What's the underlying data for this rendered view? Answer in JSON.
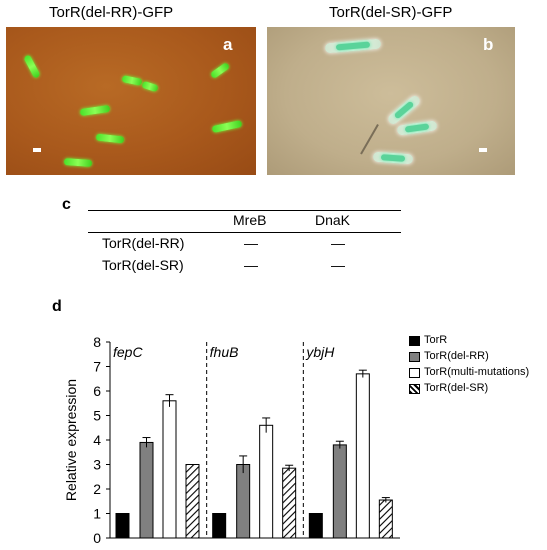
{
  "panel_a": {
    "title": "TorR(del-RR)-GFP",
    "letter": "a"
  },
  "panel_b": {
    "title": "TorR(del-SR)-GFP",
    "letter": "b"
  },
  "panel_c": {
    "letter": "c",
    "columns": [
      "MreB",
      "DnaK"
    ],
    "rows": [
      {
        "label": "TorR(del-RR)",
        "values": [
          "—",
          "—"
        ]
      },
      {
        "label": "TorR(del-SR)",
        "values": [
          "—",
          "—"
        ]
      }
    ]
  },
  "panel_d": {
    "letter": "d"
  },
  "colors": {
    "torr": "#000000",
    "del_rr": "#808080",
    "multi": "#ffffff",
    "del_sr": "#ffffff"
  },
  "chart_data": {
    "type": "bar",
    "ylabel": "Relative expression",
    "ylim": [
      0,
      8
    ],
    "yticks": [
      0,
      1,
      2,
      3,
      4,
      5,
      6,
      7,
      8
    ],
    "groups": [
      "fepC",
      "fhuB",
      "ybjH"
    ],
    "series": [
      {
        "name": "TorR",
        "values": [
          1,
          1,
          1
        ],
        "errors": [
          0,
          0,
          0
        ],
        "fill": "black"
      },
      {
        "name": "TorR(del-RR)",
        "values": [
          3.9,
          3.0,
          3.8
        ],
        "errors": [
          0.2,
          0.35,
          0.15
        ],
        "fill": "gray"
      },
      {
        "name": "TorR(multi-mutations)",
        "values": [
          5.6,
          4.6,
          6.7
        ],
        "errors": [
          0.25,
          0.3,
          0.15
        ],
        "fill": "white"
      },
      {
        "name": "TorR(del-SR)",
        "values": [
          3.0,
          2.85,
          1.55
        ],
        "errors": [
          0,
          0.12,
          0.1
        ],
        "fill": "hatched"
      }
    ],
    "legend_position": "right",
    "grid": false
  }
}
